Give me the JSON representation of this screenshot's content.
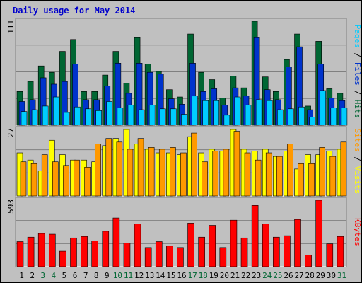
{
  "chart_data": [
    {
      "type": "bar",
      "title": "Daily usage for May 2014",
      "categories": [
        "1",
        "2",
        "3",
        "4",
        "5",
        "6",
        "7",
        "8",
        "9",
        "10",
        "11",
        "12",
        "13",
        "14",
        "15",
        "16",
        "17",
        "18",
        "19",
        "20",
        "21",
        "22",
        "23",
        "24",
        "25",
        "26",
        "27",
        "28",
        "29",
        "30",
        "31"
      ],
      "weekend_days": [
        "3",
        "4",
        "10",
        "11",
        "17",
        "18",
        "24",
        "25",
        "31"
      ],
      "ymax_label": "111",
      "series": [
        {
          "name": "Hits",
          "color": "#006633",
          "values": [
            37,
            48,
            65,
            58,
            81,
            94,
            37,
            37,
            55,
            81,
            46,
            96,
            67,
            59,
            39,
            31,
            100,
            58,
            50,
            30,
            54,
            41,
            114,
            53,
            37,
            72,
            100,
            21,
            92,
            40,
            35
          ]
        },
        {
          "name": "Files",
          "color": "#0033cc",
          "values": [
            26,
            28,
            52,
            45,
            48,
            67,
            28,
            28,
            43,
            68,
            35,
            68,
            58,
            56,
            29,
            23,
            68,
            37,
            40,
            22,
            41,
            32,
            96,
            39,
            28,
            64,
            86,
            17,
            67,
            30,
            27
          ]
        },
        {
          "name": "Pages",
          "color": "#00ccff",
          "values": [
            15,
            17,
            21,
            31,
            14,
            20,
            18,
            16,
            26,
            19,
            22,
            17,
            22,
            18,
            18,
            12,
            32,
            27,
            27,
            11,
            31,
            22,
            28,
            27,
            17,
            18,
            20,
            9,
            38,
            19,
            19
          ]
        }
      ],
      "series_order_label": [
        "Pages",
        "Files",
        "Hits"
      ]
    },
    {
      "type": "bar",
      "categories": [
        "1",
        "2",
        "3",
        "4",
        "5",
        "6",
        "7",
        "8",
        "9",
        "10",
        "11",
        "12",
        "13",
        "14",
        "15",
        "16",
        "17",
        "18",
        "19",
        "20",
        "21",
        "22",
        "23",
        "24",
        "25",
        "26",
        "27",
        "28",
        "29",
        "30",
        "31"
      ],
      "ymax_label": "27",
      "series": [
        {
          "name": "Visits",
          "color": "#ffff00",
          "values": [
            24,
            20,
            14,
            31,
            23,
            20,
            20,
            19,
            28,
            32,
            37,
            29,
            26,
            24,
            24,
            23,
            33,
            24,
            26,
            25,
            37,
            26,
            25,
            26,
            22,
            25,
            15,
            23,
            23,
            25,
            26
          ]
        },
        {
          "name": "Sites",
          "color": "#ff9900",
          "values": [
            19,
            18,
            23,
            19,
            17,
            20,
            16,
            29,
            32,
            30,
            26,
            32,
            27,
            26,
            27,
            24,
            35,
            19,
            25,
            26,
            36,
            24,
            20,
            24,
            22,
            29,
            18,
            18,
            27,
            22,
            30
          ]
        }
      ],
      "series_order_label": [
        "Sites",
        "Visits"
      ]
    },
    {
      "type": "bar",
      "categories": [
        "1",
        "2",
        "3",
        "4",
        "5",
        "6",
        "7",
        "8",
        "9",
        "10",
        "11",
        "12",
        "13",
        "14",
        "15",
        "16",
        "17",
        "18",
        "19",
        "20",
        "21",
        "22",
        "23",
        "24",
        "25",
        "26",
        "27",
        "28",
        "29",
        "30",
        "31"
      ],
      "ymax_label": "593",
      "series": [
        {
          "name": "KBytes",
          "color": "#ff0000",
          "values": [
            340,
            400,
            450,
            440,
            210,
            390,
            410,
            350,
            480,
            660,
            320,
            580,
            260,
            340,
            280,
            260,
            590,
            400,
            560,
            260,
            630,
            390,
            830,
            580,
            400,
            420,
            640,
            160,
            900,
            310,
            410
          ]
        }
      ]
    }
  ]
}
